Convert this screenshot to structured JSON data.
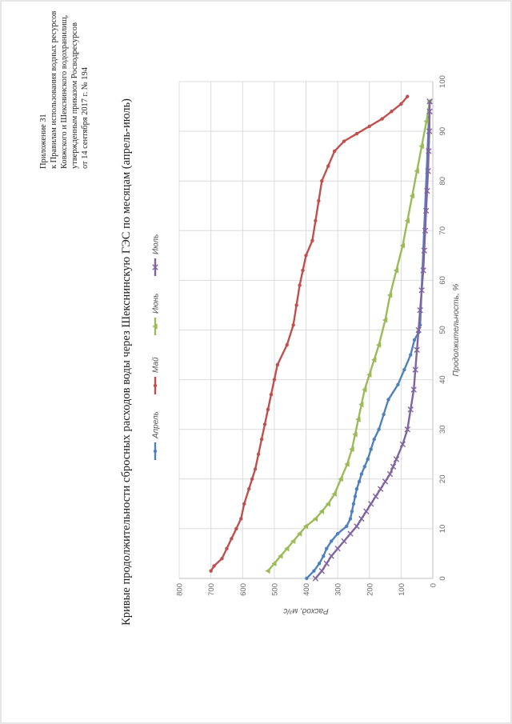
{
  "header": {
    "line1": "Приложение 31",
    "line2": "к Правилам использования водных ресурсов",
    "line3": "Ковжского и Шекснинского водохранилищ,",
    "line4": "утвержденным приказом Росводресурсов",
    "line5": "от 14 сентября 2017 г. № 194"
  },
  "chart_data": {
    "type": "line",
    "title": "Кривые продолжительности сбросных расходов воды через Шекснинскую ГЭС по месяцам (апрель-июль)",
    "xlabel": "Продолжительность, %",
    "ylabel": "Расход, м³/с",
    "xlim": [
      0,
      100
    ],
    "ylim": [
      0,
      800
    ],
    "xticks": [
      "0",
      "10",
      "20",
      "30",
      "40",
      "50",
      "60",
      "70",
      "80",
      "90",
      "100"
    ],
    "yticks": [
      "0",
      "100",
      "200",
      "300",
      "400",
      "500",
      "600",
      "700",
      "800"
    ],
    "grid": true,
    "legend_position": "top",
    "series": [
      {
        "name": "Апрель",
        "color": "#4f81bd",
        "marker": "circle",
        "x": [
          0,
          1.5,
          3,
          4.5,
          6,
          7.5,
          9,
          10.5,
          12,
          13.5,
          15,
          16.5,
          18,
          19.5,
          21,
          22.5,
          24,
          26,
          28,
          30,
          33,
          36,
          39,
          42,
          45,
          48,
          49.5,
          51,
          96
        ],
        "y": [
          398,
          375,
          358,
          345,
          335,
          320,
          300,
          272,
          260,
          255,
          250,
          245,
          240,
          232,
          225,
          215,
          205,
          195,
          185,
          170,
          155,
          140,
          110,
          90,
          70,
          58,
          45,
          40,
          10
        ]
      },
      {
        "name": "Май",
        "color": "#c0504d",
        "marker": "circle",
        "x": [
          1.5,
          2.5,
          4,
          6,
          8,
          10,
          12,
          15,
          18,
          20,
          22,
          25,
          28,
          31,
          34,
          37,
          40,
          43,
          47,
          51,
          55,
          59,
          62,
          65,
          68,
          72,
          76,
          80,
          83,
          86,
          88,
          89.5,
          91,
          92.5,
          94,
          95.5,
          97
        ],
        "y": [
          700,
          690,
          665,
          650,
          635,
          620,
          605,
          595,
          580,
          570,
          560,
          550,
          540,
          530,
          520,
          510,
          500,
          490,
          460,
          440,
          430,
          420,
          410,
          400,
          380,
          370,
          360,
          350,
          330,
          310,
          280,
          240,
          200,
          160,
          130,
          100,
          80
        ]
      },
      {
        "name": "Июнь",
        "color": "#9bbb59",
        "marker": "triangle",
        "x": [
          1.5,
          3,
          4.5,
          6,
          7.5,
          9,
          10.5,
          12,
          13.5,
          15,
          17,
          20,
          23,
          26,
          29,
          32,
          35,
          38,
          41,
          44,
          47,
          52,
          57,
          62,
          67,
          72,
          77,
          82,
          87,
          92,
          96
        ],
        "y": [
          520,
          500,
          480,
          460,
          440,
          420,
          400,
          370,
          350,
          330,
          310,
          290,
          270,
          255,
          245,
          235,
          225,
          215,
          200,
          185,
          170,
          150,
          135,
          115,
          95,
          80,
          65,
          50,
          35,
          20,
          10
        ]
      },
      {
        "name": "Июль",
        "color": "#8064a2",
        "marker": "x",
        "x": [
          0,
          1.5,
          3,
          4.5,
          6,
          7.5,
          9,
          10.5,
          12,
          13.5,
          15,
          16.5,
          18,
          19.5,
          21,
          22.5,
          24,
          27,
          30,
          34,
          38,
          42,
          46,
          50,
          54,
          58,
          62,
          66,
          70,
          74,
          78,
          82,
          86,
          90,
          94,
          96
        ],
        "y": [
          370,
          350,
          335,
          320,
          300,
          280,
          260,
          240,
          225,
          210,
          195,
          180,
          165,
          150,
          135,
          125,
          115,
          95,
          80,
          70,
          60,
          55,
          50,
          45,
          40,
          35,
          30,
          27,
          24,
          21,
          18,
          15,
          13,
          11,
          10,
          10
        ]
      }
    ]
  }
}
